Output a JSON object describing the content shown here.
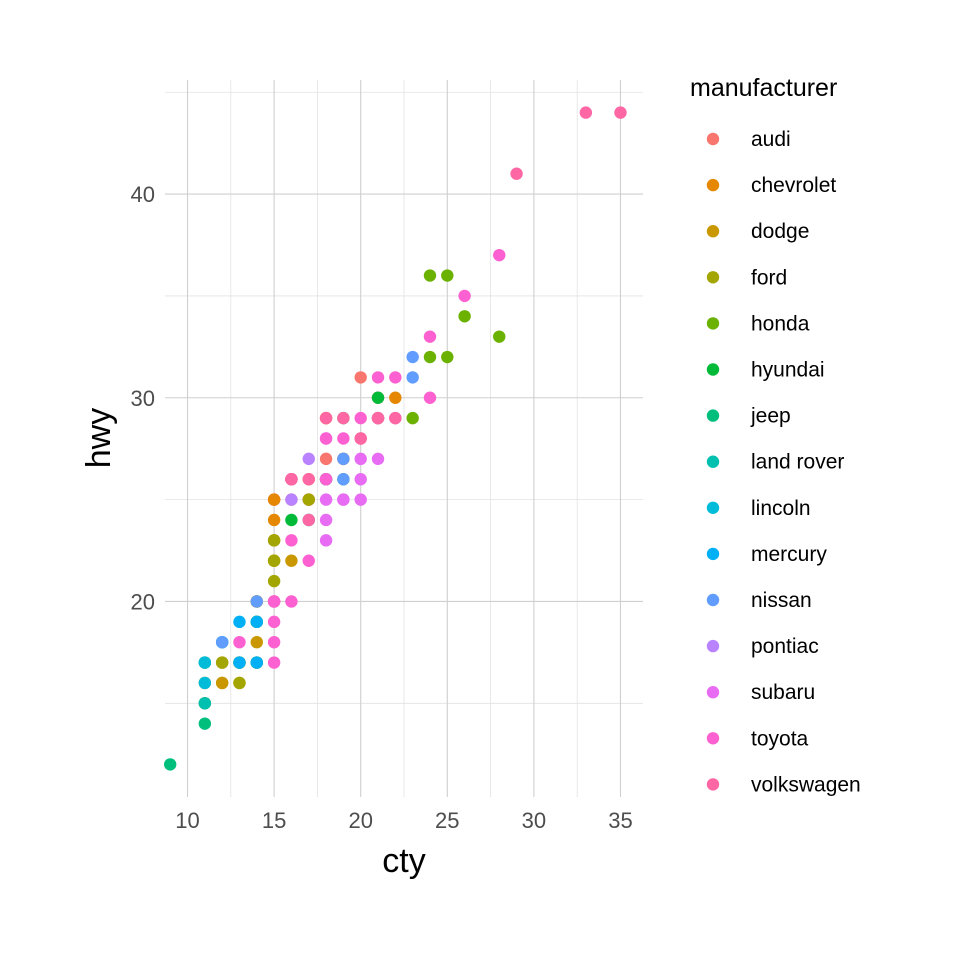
{
  "chart_data": {
    "type": "scatter",
    "xlabel": "cty",
    "ylabel": "hwy",
    "xlim": [
      8.7,
      36.3
    ],
    "ylim": [
      10.4,
      45.6
    ],
    "x_ticks": [
      10,
      15,
      20,
      25,
      30,
      35
    ],
    "y_ticks": [
      20,
      30,
      40
    ],
    "grid": true,
    "legend": {
      "title": "manufacturer",
      "placement": "right"
    },
    "series": [
      {
        "name": "audi",
        "color": "#F8766D",
        "points": [
          [
            18,
            29
          ],
          [
            21,
            29
          ],
          [
            20,
            31
          ],
          [
            21,
            30
          ],
          [
            16,
            26
          ],
          [
            18,
            26
          ],
          [
            18,
            27
          ],
          [
            18,
            26
          ],
          [
            16,
            25
          ],
          [
            20,
            28
          ],
          [
            19,
            27
          ],
          [
            15,
            25
          ],
          [
            17,
            25
          ],
          [
            17,
            25
          ],
          [
            15,
            25
          ]
        ]
      },
      {
        "name": "chevrolet",
        "color": "#E58700",
        "points": [
          [
            14,
            20
          ],
          [
            11,
            15
          ],
          [
            14,
            20
          ],
          [
            13,
            17
          ],
          [
            12,
            17
          ],
          [
            16,
            26
          ],
          [
            15,
            23
          ],
          [
            16,
            26
          ],
          [
            15,
            25
          ],
          [
            15,
            24
          ],
          [
            19,
            27
          ],
          [
            22,
            30
          ],
          [
            18,
            26
          ],
          [
            18,
            29
          ],
          [
            17,
            26
          ]
        ]
      },
      {
        "name": "dodge",
        "color": "#C99800",
        "points": [
          [
            15,
            22
          ],
          [
            14,
            17
          ],
          [
            14,
            19
          ],
          [
            15,
            22
          ],
          [
            14,
            20
          ],
          [
            11,
            15
          ],
          [
            12,
            16
          ],
          [
            13,
            17
          ],
          [
            16,
            22
          ],
          [
            15,
            23
          ],
          [
            13,
            16
          ],
          [
            12,
            16
          ],
          [
            14,
            18
          ]
        ]
      },
      {
        "name": "ford",
        "color": "#A3A500",
        "points": [
          [
            11,
            17
          ],
          [
            11,
            16
          ],
          [
            12,
            17
          ],
          [
            15,
            20
          ],
          [
            14,
            17
          ],
          [
            13,
            16
          ],
          [
            14,
            20
          ],
          [
            13,
            17
          ],
          [
            15,
            21
          ],
          [
            15,
            22
          ],
          [
            14,
            19
          ],
          [
            15,
            23
          ],
          [
            17,
            25
          ],
          [
            18,
            26
          ]
        ]
      },
      {
        "name": "honda",
        "color": "#6BB100",
        "points": [
          [
            28,
            33
          ],
          [
            24,
            32
          ],
          [
            25,
            32
          ],
          [
            23,
            29
          ],
          [
            24,
            36
          ],
          [
            26,
            34
          ],
          [
            25,
            36
          ]
        ]
      },
      {
        "name": "hyundai",
        "color": "#00BA38",
        "points": [
          [
            18,
            26
          ],
          [
            21,
            30
          ],
          [
            19,
            29
          ],
          [
            21,
            29
          ],
          [
            16,
            24
          ],
          [
            17,
            24
          ],
          [
            19,
            26
          ],
          [
            18,
            26
          ]
        ]
      },
      {
        "name": "jeep",
        "color": "#00BF7D",
        "points": [
          [
            14,
            19
          ],
          [
            9,
            12
          ],
          [
            11,
            14
          ],
          [
            14,
            17
          ],
          [
            13,
            17
          ],
          [
            11,
            15
          ]
        ]
      },
      {
        "name": "land rover",
        "color": "#00C0AF",
        "points": [
          [
            11,
            15
          ],
          [
            12,
            18
          ],
          [
            11,
            17
          ]
        ]
      },
      {
        "name": "lincoln",
        "color": "#00BCD8",
        "points": [
          [
            11,
            17
          ],
          [
            11,
            16
          ],
          [
            12,
            18
          ]
        ]
      },
      {
        "name": "mercury",
        "color": "#00B0F6",
        "points": [
          [
            14,
            19
          ],
          [
            13,
            19
          ],
          [
            13,
            17
          ],
          [
            14,
            17
          ]
        ]
      },
      {
        "name": "nissan",
        "color": "#619CFF",
        "points": [
          [
            21,
            29
          ],
          [
            23,
            31
          ],
          [
            23,
            32
          ],
          [
            19,
            27
          ],
          [
            19,
            26
          ],
          [
            18,
            26
          ],
          [
            12,
            18
          ],
          [
            14,
            20
          ],
          [
            17,
            24
          ]
        ]
      },
      {
        "name": "pontiac",
        "color": "#B983FF",
        "points": [
          [
            18,
            28
          ],
          [
            17,
            27
          ],
          [
            16,
            25
          ],
          [
            18,
            26
          ],
          [
            16,
            26
          ]
        ]
      },
      {
        "name": "subaru",
        "color": "#E76BF3",
        "points": [
          [
            18,
            25
          ],
          [
            18,
            24
          ],
          [
            20,
            27
          ],
          [
            19,
            25
          ],
          [
            20,
            26
          ],
          [
            18,
            23
          ],
          [
            21,
            27
          ],
          [
            19,
            25
          ],
          [
            20,
            25
          ]
        ]
      },
      {
        "name": "toyota",
        "color": "#FD61D1",
        "points": [
          [
            15,
            20
          ],
          [
            16,
            20
          ],
          [
            15,
            19
          ],
          [
            15,
            17
          ],
          [
            15,
            18
          ],
          [
            24,
            30
          ],
          [
            24,
            33
          ],
          [
            26,
            35
          ],
          [
            28,
            37
          ],
          [
            21,
            31
          ],
          [
            18,
            28
          ],
          [
            15,
            20
          ],
          [
            16,
            26
          ],
          [
            19,
            28
          ],
          [
            18,
            26
          ],
          [
            22,
            31
          ],
          [
            20,
            29
          ],
          [
            22,
            29
          ],
          [
            13,
            18
          ],
          [
            15,
            20
          ],
          [
            16,
            23
          ],
          [
            17,
            22
          ]
        ]
      },
      {
        "name": "volkswagen",
        "color": "#FF67A4",
        "points": [
          [
            35,
            44
          ],
          [
            29,
            41
          ],
          [
            21,
            29
          ],
          [
            19,
            29
          ],
          [
            33,
            44
          ],
          [
            16,
            26
          ],
          [
            17,
            26
          ],
          [
            17,
            24
          ],
          [
            18,
            29
          ],
          [
            20,
            28
          ],
          [
            22,
            29
          ],
          [
            21,
            29
          ],
          [
            16,
            26
          ]
        ]
      }
    ]
  }
}
